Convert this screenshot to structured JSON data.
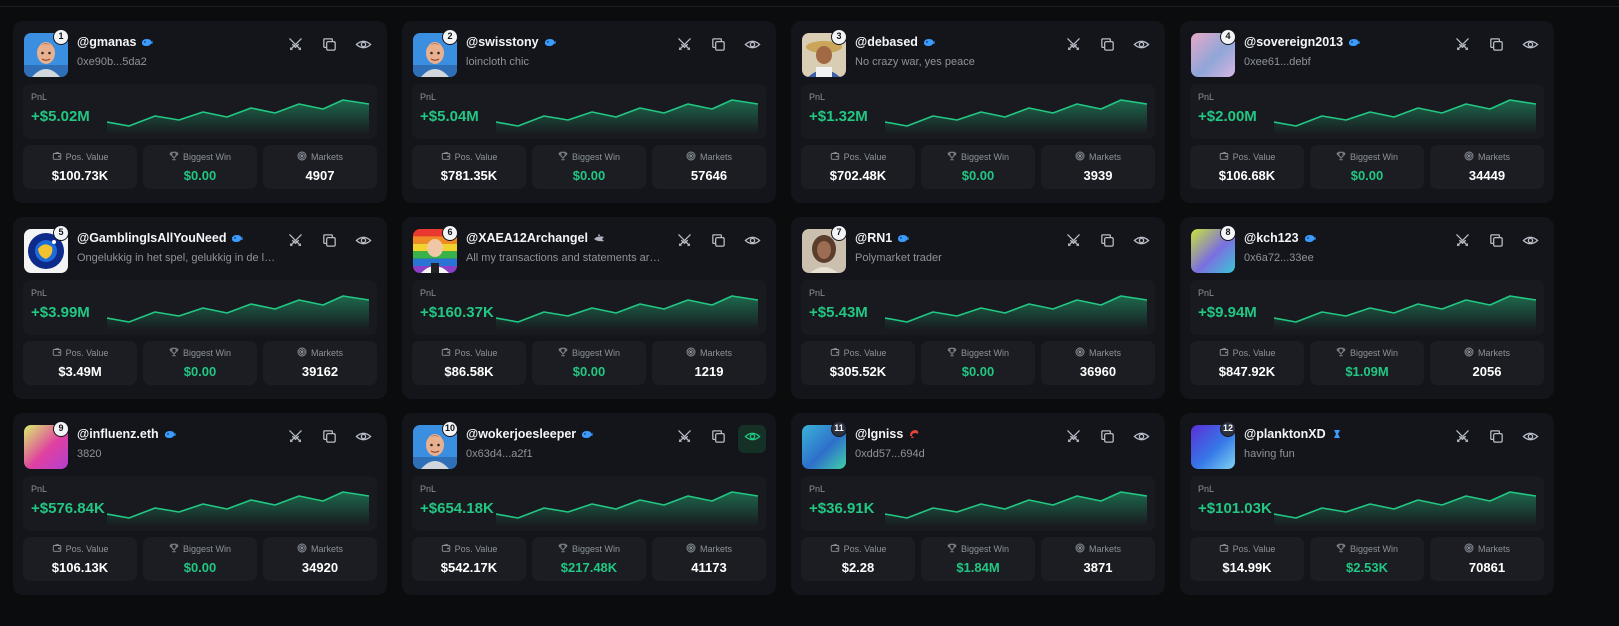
{
  "stat_labels": {
    "pos_value": "Pos. Value",
    "biggest_win": "Biggest Win",
    "markets": "Markets"
  },
  "pnl_label": "PnL",
  "colors": {
    "accent_green": "#22c783",
    "card_bg": "#14151a",
    "panel_bg": "#181a1f",
    "stat_bg": "#1b1d22",
    "badge_blue": "#3b9bff",
    "badge_red": "#e8443b"
  },
  "traders": [
    {
      "rank": "1",
      "handle": "@gmanas",
      "subtitle": "0xe90b...5da2",
      "badge": "whale-icon",
      "avatar": "avatar-cartoon-man-icon",
      "pnl": "+$5.02M",
      "pos_value": "$100.73K",
      "biggest_win": "$0.00",
      "markets": "4907",
      "watching": false
    },
    {
      "rank": "2",
      "handle": "@swisstony",
      "subtitle": "loincloth chic",
      "badge": "whale-icon",
      "avatar": "avatar-cartoon-man-icon",
      "pnl": "+$5.04M",
      "pos_value": "$781.35K",
      "biggest_win": "$0.00",
      "markets": "57646",
      "watching": false
    },
    {
      "rank": "3",
      "handle": "@debased",
      "subtitle": "No crazy war, yes peace",
      "badge": "whale-icon",
      "avatar": "avatar-photo-hat-icon",
      "pnl": "+$1.32M",
      "pos_value": "$702.48K",
      "biggest_win": "$0.00",
      "markets": "3939",
      "watching": false
    },
    {
      "rank": "4",
      "handle": "@sovereign2013",
      "subtitle": "0xee61...debf",
      "badge": "whale-icon",
      "avatar": "avatar-gradient-icon",
      "pnl": "+$2.00M",
      "pos_value": "$106.68K",
      "biggest_win": "$0.00",
      "markets": "34449",
      "watching": false
    },
    {
      "rank": "5",
      "handle": "@GamblingIsAllYouNeed",
      "subtitle": "Ongelukkig in het spel, gelukkig in de liefde",
      "badge": "whale-icon",
      "avatar": "avatar-globe-icon",
      "pnl": "+$3.99M",
      "pos_value": "$3.49M",
      "biggest_win": "$0.00",
      "markets": "39162",
      "watching": false
    },
    {
      "rank": "6",
      "handle": "@XAEA12Archangel",
      "subtitle": "All my transactions and statements are not financial advice",
      "badge": "shark-icon",
      "avatar": "avatar-rainbow-man-icon",
      "pnl": "+$160.37K",
      "pos_value": "$86.58K",
      "biggest_win": "$0.00",
      "markets": "1219",
      "watching": false
    },
    {
      "rank": "7",
      "handle": "@RN1",
      "subtitle": "Polymarket trader",
      "badge": "whale-icon",
      "avatar": "avatar-photo-woman-icon",
      "pnl": "+$5.43M",
      "pos_value": "$305.52K",
      "biggest_win": "$0.00",
      "markets": "36960",
      "watching": false
    },
    {
      "rank": "8",
      "handle": "@kch123",
      "subtitle": "0x6a72...33ee",
      "badge": "whale-icon",
      "avatar": "avatar-gradient-icon",
      "pnl": "+$9.94M",
      "pos_value": "$847.92K",
      "biggest_win": "$1.09M",
      "markets": "2056",
      "watching": false
    },
    {
      "rank": "9",
      "handle": "@influenz.eth",
      "subtitle": "3820",
      "badge": "whale-icon",
      "avatar": "avatar-gradient-icon",
      "pnl": "+$576.84K",
      "pos_value": "$106.13K",
      "biggest_win": "$0.00",
      "markets": "34920",
      "watching": false
    },
    {
      "rank": "10",
      "handle": "@wokerjoesleeper",
      "subtitle": "0x63d4...a2f1",
      "badge": "whale-icon",
      "avatar": "avatar-cartoon-man-icon",
      "pnl": "+$654.18K",
      "pos_value": "$542.17K",
      "biggest_win": "$217.48K",
      "markets": "41173",
      "watching": true
    },
    {
      "rank": "11",
      "handle": "@lgniss",
      "subtitle": "0xdd57...694d",
      "badge": "shrimp-icon",
      "avatar": "avatar-gradient-icon",
      "pnl": "+$36.91K",
      "pos_value": "$2.28",
      "biggest_win": "$1.84M",
      "markets": "3871",
      "watching": false
    },
    {
      "rank": "12",
      "handle": "@planktonXD",
      "subtitle": "having fun",
      "badge": "plankton-icon",
      "avatar": "avatar-gradient-icon",
      "pnl": "+$101.03K",
      "pos_value": "$14.99K",
      "biggest_win": "$2.53K",
      "markets": "70861",
      "watching": false
    }
  ]
}
